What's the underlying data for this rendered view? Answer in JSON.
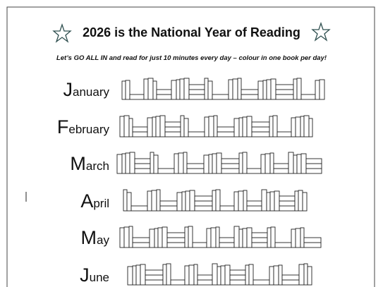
{
  "header": {
    "title": "2026 is the National Year of Reading",
    "subtitle": "Let’s GO ALL IN and read for just 10 minutes every day – colour in one book per day!"
  },
  "months": [
    "January",
    "February",
    "March",
    "April",
    "May",
    "June"
  ]
}
